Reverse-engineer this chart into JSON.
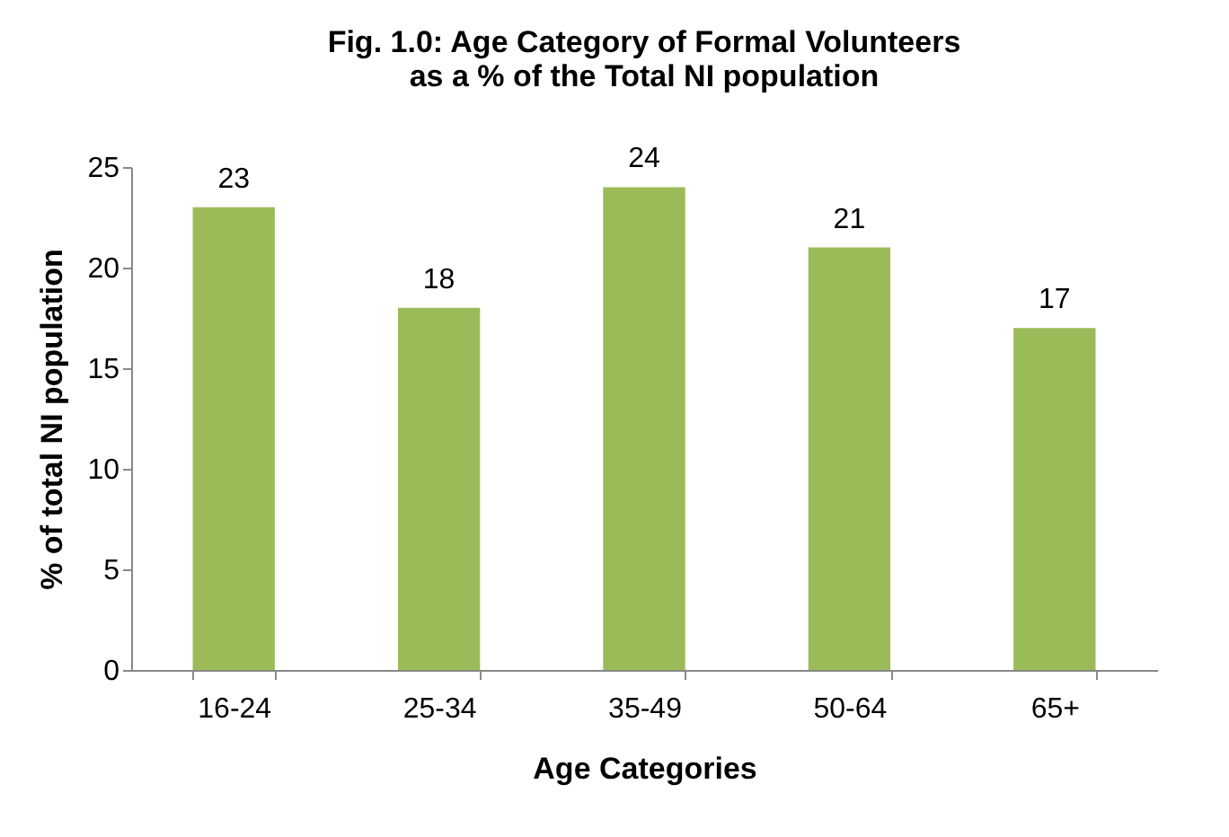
{
  "chart_data": {
    "type": "bar",
    "title": "Fig. 1.0: Age Category of Formal Volunteers\nas a % of the Total NI population",
    "categories": [
      "16-24",
      "25-34",
      "35-49",
      "50-64",
      "65+"
    ],
    "values": [
      23,
      18,
      24,
      21,
      17
    ],
    "color": "#9bbb59",
    "xlabel": "Age Categories",
    "ylabel": "% of total NI population",
    "ylim": [
      0,
      25
    ],
    "yticks": [
      0,
      5,
      10,
      15,
      20,
      25
    ],
    "grid": false,
    "data_labels": true
  }
}
